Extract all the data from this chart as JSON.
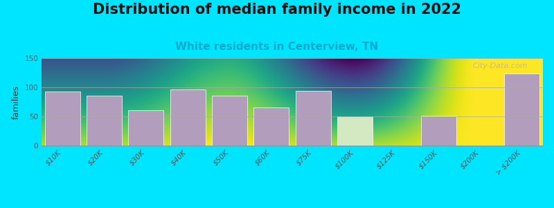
{
  "title": "Distribution of median family income in 2022",
  "subtitle": "White residents in Centerview, TN",
  "xlabel": "",
  "ylabel": "families",
  "categories": [
    "$10K",
    "$20K",
    "$30K",
    "$40K",
    "$50K",
    "$60K",
    "$75K",
    "$100K",
    "$125K",
    "$150K",
    "$200K",
    "> $200K"
  ],
  "values": [
    93,
    86,
    61,
    96,
    86,
    65,
    94,
    50,
    0,
    51,
    0,
    124
  ],
  "bar_colors": [
    "#b39dbd",
    "#b39dbd",
    "#b39dbd",
    "#b39dbd",
    "#b39dbd",
    "#b39dbd",
    "#b39dbd",
    "#d4e8c2",
    "#d4e8c2",
    "#b39dbd",
    "#d4e8c2",
    "#b39dbd"
  ],
  "background_outer": "#00e5ff",
  "background_plot_grad_top": "#d6eac8",
  "background_plot_grad_bottom": "#f8fff8",
  "ylim": [
    0,
    150
  ],
  "yticks": [
    0,
    50,
    100,
    150
  ],
  "watermark": "City-Data.com",
  "title_fontsize": 15,
  "subtitle_fontsize": 11,
  "ylabel_fontsize": 9,
  "tick_fontsize": 7.5
}
